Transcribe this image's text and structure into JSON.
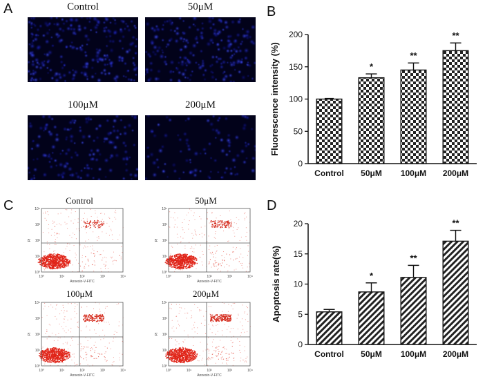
{
  "panel_letters": {
    "a": "A",
    "b": "B",
    "c": "C",
    "d": "D"
  },
  "micrographs": [
    {
      "label": "Control",
      "density": 0.95,
      "dim": 0.55
    },
    {
      "label": "50μM",
      "density": 0.85,
      "dim": 0.7
    },
    {
      "label": "100μM",
      "density": 0.6,
      "dim": 0.8
    },
    {
      "label": "200μM",
      "density": 0.4,
      "dim": 0.85
    }
  ],
  "flow_plots": [
    {
      "label": "Control",
      "upper_right": 0.25,
      "lower_right": 0.1
    },
    {
      "label": "50μM",
      "upper_right": 0.4,
      "lower_right": 0.15
    },
    {
      "label": "100μM",
      "upper_right": 0.55,
      "lower_right": 0.15
    },
    {
      "label": "200μM",
      "upper_right": 0.7,
      "lower_right": 0.2
    }
  ],
  "flow_axes": {
    "xlabel": "Annexin-V-FITC",
    "ylabel": "PI",
    "ticks": [
      "10⁰",
      "10¹",
      "10²",
      "10³",
      "10⁴"
    ]
  },
  "chart_data": [
    {
      "id": "B",
      "type": "bar",
      "categories": [
        "Control",
        "50μM",
        "100μM",
        "200μM"
      ],
      "values": [
        100,
        133,
        145,
        175
      ],
      "errors": [
        0,
        6,
        11,
        12
      ],
      "significance": [
        "",
        "*",
        "**",
        "**"
      ],
      "ylabel": "Fluorescence intensity (%)",
      "xlabel": "",
      "ylim": [
        0,
        200
      ],
      "yticks": [
        0,
        50,
        100,
        150,
        200
      ],
      "pattern": "checker"
    },
    {
      "id": "D",
      "type": "bar",
      "categories": [
        "Control",
        "50μM",
        "100μM",
        "200μM"
      ],
      "values": [
        5.4,
        8.7,
        11.1,
        17.1
      ],
      "errors": [
        0.4,
        1.5,
        2.0,
        1.8
      ],
      "significance": [
        "",
        "*",
        "**",
        "**"
      ],
      "ylabel": "Apoptosis rate(%)",
      "xlabel": "",
      "ylim": [
        0,
        20
      ],
      "yticks": [
        0,
        5,
        10,
        15,
        20
      ],
      "pattern": "diagonal"
    }
  ]
}
